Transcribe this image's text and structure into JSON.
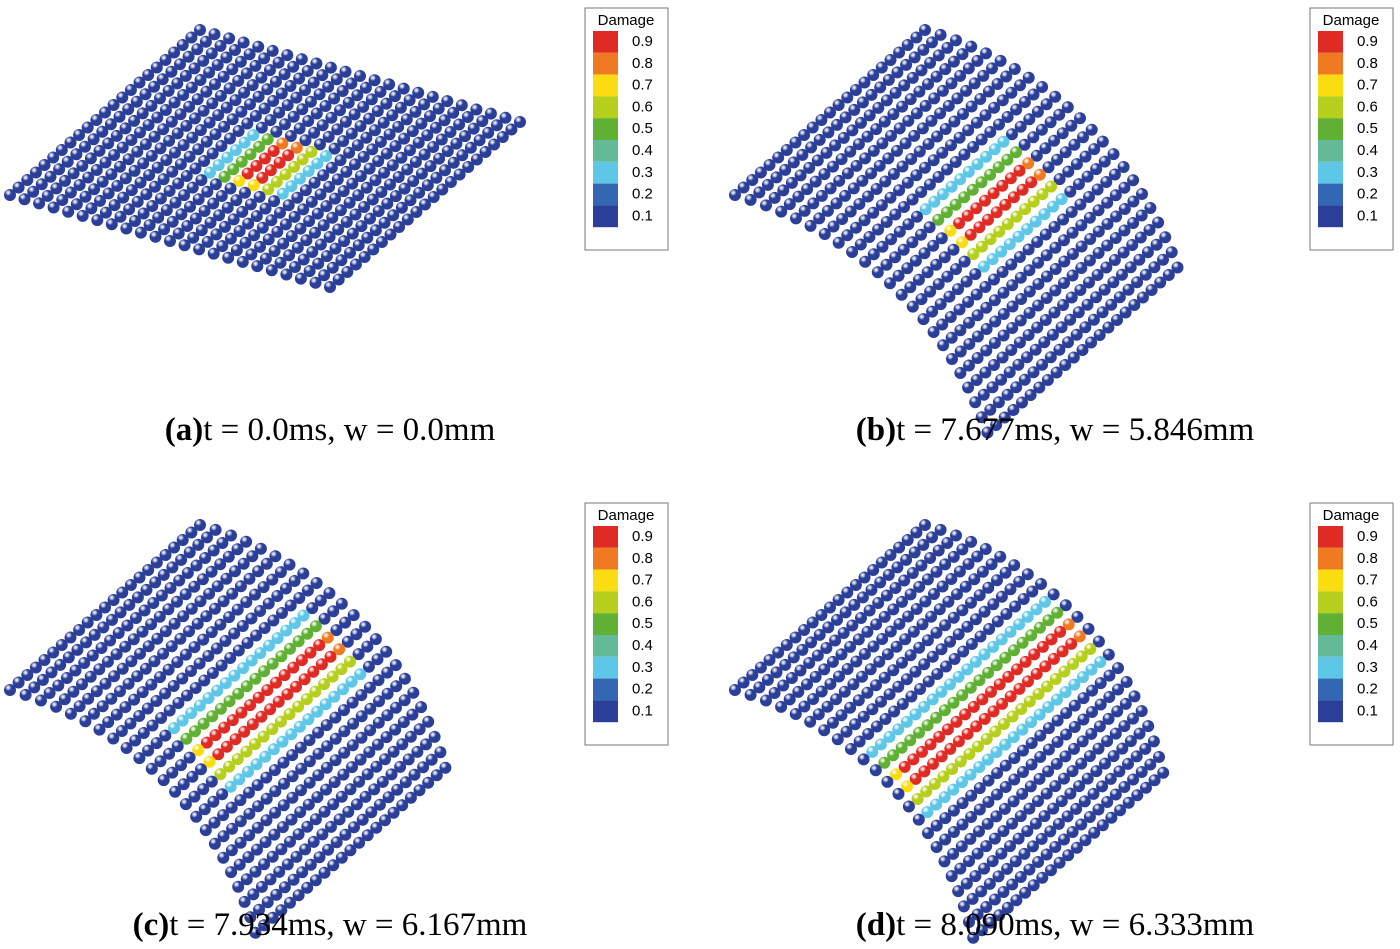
{
  "panels": [
    {
      "label": "(a)",
      "caption": "t = 0.0ms, w = 0.0mm"
    },
    {
      "label": "(b)",
      "caption": "t = 7.677ms, w = 5.846mm"
    },
    {
      "label": "(c)",
      "caption": "t = 7.934ms, w = 6.167mm"
    },
    {
      "label": "(d)",
      "caption": "t = 8.090ms, w = 6.333mm"
    }
  ],
  "legend": {
    "title": "Damage",
    "entries": [
      {
        "label": "0.9",
        "color": "#e02b25"
      },
      {
        "label": "0.8",
        "color": "#f07a22"
      },
      {
        "label": "0.7",
        "color": "#fbdc10"
      },
      {
        "label": "0.6",
        "color": "#b5cf1c"
      },
      {
        "label": "0.5",
        "color": "#5fb033"
      },
      {
        "label": "0.4",
        "color": "#62bb96"
      },
      {
        "label": "0.3",
        "color": "#5ec6e6"
      },
      {
        "label": "0.2",
        "color": "#3467b3"
      },
      {
        "label": "0.1",
        "color": "#2b3f99"
      }
    ]
  }
}
